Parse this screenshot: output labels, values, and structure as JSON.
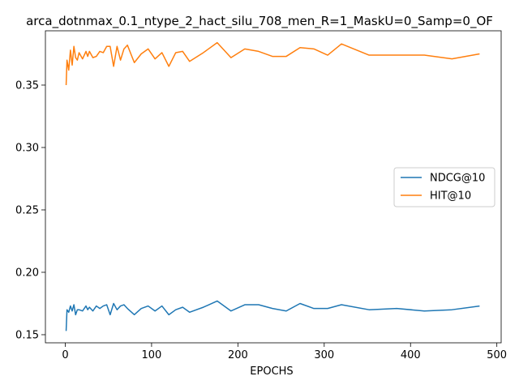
{
  "chart_data": {
    "type": "line",
    "title": "arca_dotnmax_0.1_ntype_2_hact_silu_708_men_R=1_MaskU=0_Samp=0_OF",
    "xlabel": "EPOCHS",
    "ylabel": "",
    "xlim": [
      -23,
      505
    ],
    "ylim": [
      0.1435,
      0.3935
    ],
    "xticks": [
      0,
      100,
      200,
      300,
      400,
      500
    ],
    "yticks": [
      0.15,
      0.2,
      0.25,
      0.3,
      0.35
    ],
    "ytick_labels": [
      "0.15",
      "0.20",
      "0.25",
      "0.30",
      "0.35"
    ],
    "xtick_labels": [
      "0",
      "100",
      "200",
      "300",
      "400",
      "500"
    ],
    "grid": false,
    "legend_position": "center-right",
    "series": [
      {
        "name": "NDCG@10",
        "color": "#1f77b4",
        "x": [
          1,
          2,
          4,
          6,
          8,
          10,
          12,
          14,
          16,
          20,
          24,
          26,
          28,
          32,
          36,
          40,
          44,
          48,
          52,
          56,
          60,
          64,
          68,
          72,
          80,
          88,
          96,
          104,
          112,
          120,
          128,
          136,
          144,
          160,
          176,
          192,
          208,
          224,
          240,
          256,
          272,
          288,
          304,
          320,
          352,
          384,
          416,
          448,
          480
        ],
        "y": [
          0.153,
          0.17,
          0.168,
          0.173,
          0.169,
          0.174,
          0.166,
          0.17,
          0.17,
          0.169,
          0.173,
          0.17,
          0.172,
          0.169,
          0.173,
          0.171,
          0.173,
          0.174,
          0.166,
          0.175,
          0.17,
          0.173,
          0.174,
          0.171,
          0.166,
          0.171,
          0.173,
          0.169,
          0.173,
          0.166,
          0.17,
          0.172,
          0.168,
          0.172,
          0.177,
          0.169,
          0.174,
          0.174,
          0.171,
          0.169,
          0.175,
          0.171,
          0.171,
          0.174,
          0.17,
          0.171,
          0.169,
          0.17,
          0.173
        ]
      },
      {
        "name": "HIT@10",
        "color": "#ff7f0e",
        "x": [
          1,
          2,
          4,
          6,
          8,
          10,
          12,
          14,
          16,
          20,
          24,
          26,
          28,
          32,
          36,
          40,
          44,
          48,
          52,
          56,
          60,
          64,
          68,
          72,
          80,
          88,
          96,
          104,
          112,
          120,
          128,
          136,
          144,
          160,
          176,
          192,
          208,
          224,
          240,
          256,
          272,
          288,
          304,
          320,
          352,
          384,
          416,
          448,
          480
        ],
        "y": [
          0.35,
          0.37,
          0.362,
          0.378,
          0.366,
          0.381,
          0.372,
          0.37,
          0.376,
          0.371,
          0.377,
          0.373,
          0.377,
          0.372,
          0.373,
          0.377,
          0.376,
          0.381,
          0.381,
          0.365,
          0.381,
          0.37,
          0.379,
          0.382,
          0.368,
          0.375,
          0.379,
          0.371,
          0.376,
          0.365,
          0.376,
          0.377,
          0.369,
          0.376,
          0.384,
          0.372,
          0.379,
          0.377,
          0.373,
          0.373,
          0.38,
          0.379,
          0.374,
          0.383,
          0.374,
          0.374,
          0.374,
          0.371,
          0.375
        ]
      }
    ]
  }
}
